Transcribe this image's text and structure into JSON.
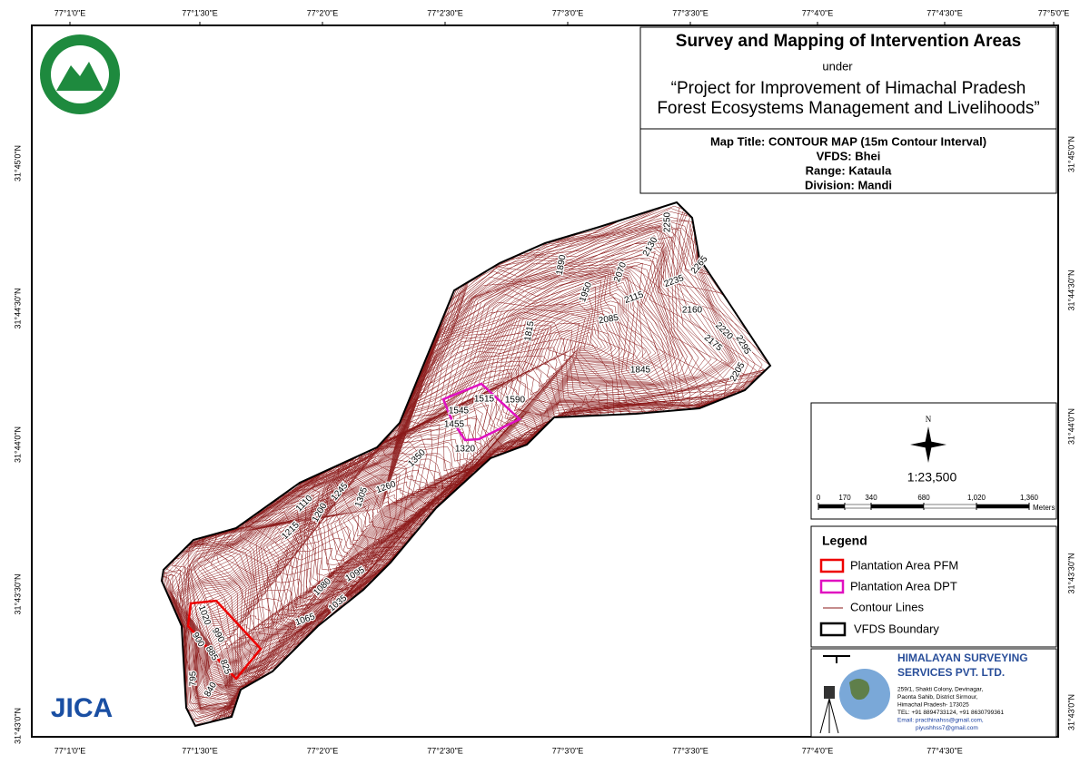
{
  "graticule": {
    "top": [
      "77°1'0\"E",
      "77°1'30\"E",
      "77°2'0\"E",
      "77°2'30\"E",
      "77°3'0\"E",
      "77°3'30\"E",
      "77°4'0\"E",
      "77°4'30\"E",
      "77°5'0\"E"
    ],
    "bottom": [
      "77°1'0\"E",
      "77°1'30\"E",
      "77°2'0\"E",
      "77°2'30\"E",
      "77°3'0\"E",
      "77°3'30\"E",
      "77°4'0\"E",
      "77°4'30\"E"
    ],
    "left": [
      "31°45'0\"N",
      "31°44'30\"N",
      "31°44'0\"N",
      "31°43'30\"N",
      "31°43'0\"N"
    ],
    "right": [
      "31°45'0\"N",
      "31°44'30\"N",
      "31°44'0\"N",
      "31°43'30\"N",
      "31°43'0\"N"
    ]
  },
  "title_box": {
    "title": "Survey and Mapping of Intervention Areas",
    "under": "under",
    "project_line1": "“Project for Improvement of Himachal Pradesh",
    "project_line2": "Forest Ecosystems Management and Livelihoods”",
    "map_title": "Map Title: CONTOUR MAP (15m Contour Interval)",
    "vfds": "VFDS: Bhei",
    "range": "Range: Kataula",
    "division": "Division: Mandi"
  },
  "scale": {
    "north": "N",
    "ratio": "1:23,500",
    "ticks": [
      0,
      170,
      340,
      680,
      {
        "value": 1020,
        "label": "1,020"
      },
      {
        "value": 1360,
        "label": "1,360"
      }
    ],
    "unit": "Meters"
  },
  "legend": {
    "title": "Legend",
    "items": [
      "Plantation Area PFM",
      "Plantation Area DPT",
      "Contour Lines",
      "VFDS Boundary"
    ]
  },
  "company": {
    "name_line1": "HIMALAYAN SURVEYING",
    "name_line2": "SERVICES PVT. LTD.",
    "address": [
      "259/1, Shakti Colony, Devinagar,",
      "Paonta Sahib, District Sirmour,",
      "Himachal Pradesh- 173025",
      "TEL: +91 8894733124, +91 8630799361",
      "Email: practhinahss@gmail.com,",
      "piyushhss7@gmail.com"
    ]
  },
  "logo": "JICA",
  "contour_labels": [
    2250,
    2130,
    2265,
    2070,
    1890,
    1950,
    2235,
    2115,
    2160,
    2085,
    2220,
    2175,
    2295,
    2205,
    1815,
    1845,
    1515,
    1590,
    1545,
    1455,
    1320,
    1350,
    1260,
    1305,
    1245,
    1200,
    1110,
    1215,
    1080,
    1095,
    1035,
    1065,
    1020,
    990,
    900,
    885,
    825,
    795,
    840
  ]
}
